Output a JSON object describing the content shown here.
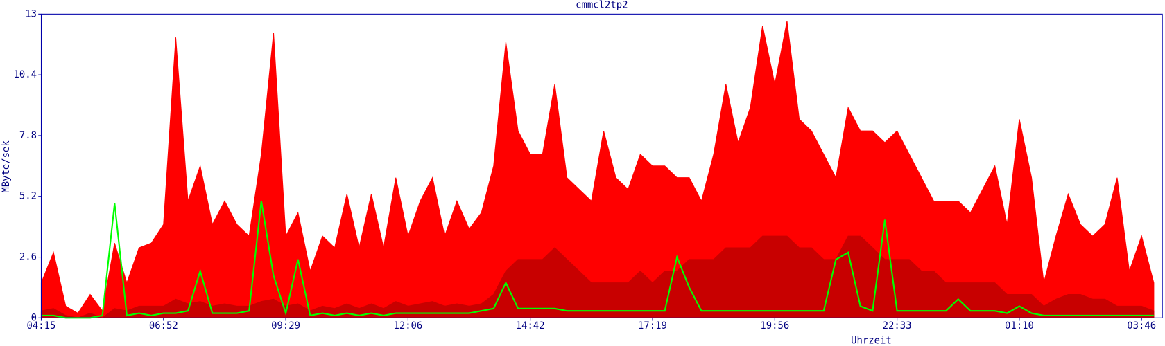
{
  "chart_data": {
    "type": "area",
    "title": "cmmcl2tp2",
    "y_label": "MByte/sek",
    "x_label": "Uhrzeit",
    "categories": [
      "04:15",
      null,
      null,
      null,
      null,
      null,
      null,
      null,
      null,
      null,
      "06:52",
      null,
      null,
      null,
      null,
      null,
      null,
      null,
      null,
      null,
      "09:29",
      null,
      null,
      null,
      null,
      null,
      null,
      null,
      null,
      null,
      "12:06",
      null,
      null,
      null,
      null,
      null,
      null,
      null,
      null,
      null,
      "14:42",
      null,
      null,
      null,
      null,
      null,
      null,
      null,
      null,
      null,
      "17:19",
      null,
      null,
      null,
      null,
      null,
      null,
      null,
      null,
      null,
      "19:56",
      null,
      null,
      null,
      null,
      null,
      null,
      null,
      null,
      null,
      "22:33",
      null,
      null,
      null,
      null,
      null,
      null,
      null,
      null,
      null,
      "01:10",
      null,
      null,
      null,
      null,
      null,
      null,
      null,
      null,
      null,
      "03:46",
      null
    ],
    "series": [
      {
        "color": "#ff0000",
        "style": "area",
        "values": [
          1.5,
          2.8,
          0.5,
          0.2,
          1,
          0.3,
          3.2,
          1.5,
          3,
          3.2,
          4,
          12,
          5,
          6.5,
          4,
          5,
          4,
          3.5,
          7,
          12.2,
          3.5,
          4.5,
          2,
          3.5,
          3,
          5.3,
          3,
          5.3,
          3,
          6,
          3.5,
          5,
          6,
          3.5,
          5,
          3.8,
          4.5,
          6.5,
          11.8,
          8,
          7,
          7,
          10,
          6,
          5.5,
          5,
          8,
          6,
          5.5,
          7,
          6.5,
          6.5,
          6,
          6,
          5,
          7,
          10,
          7.5,
          9,
          12.5,
          10,
          12.7,
          8.5,
          8,
          7,
          6,
          9,
          8,
          8,
          7.5,
          8,
          7,
          6,
          5,
          5,
          5,
          4.5,
          5.5,
          6.5,
          4,
          8.5,
          6,
          1.5,
          3.5,
          5.3,
          4,
          3.5,
          4,
          6,
          2,
          3.5,
          1.5
        ]
      },
      {
        "color": "#c80000",
        "style": "area",
        "values": [
          0.3,
          0.4,
          0.1,
          0,
          0.2,
          0,
          0.4,
          0.3,
          0.5,
          0.5,
          0.5,
          0.8,
          0.6,
          0.7,
          0.5,
          0.6,
          0.5,
          0.5,
          0.7,
          0.8,
          0.5,
          0.6,
          0.3,
          0.5,
          0.4,
          0.6,
          0.4,
          0.6,
          0.4,
          0.7,
          0.5,
          0.6,
          0.7,
          0.5,
          0.6,
          0.5,
          0.6,
          1,
          2,
          2.5,
          2.5,
          2.5,
          3,
          2.5,
          2,
          1.5,
          1.5,
          1.5,
          1.5,
          2,
          1.5,
          2,
          2,
          2.5,
          2.5,
          2.5,
          3,
          3,
          3,
          3.5,
          3.5,
          3.5,
          3,
          3,
          2.5,
          2.5,
          3.5,
          3.5,
          3,
          2.5,
          2.5,
          2.5,
          2,
          2,
          1.5,
          1.5,
          1.5,
          1.5,
          1.5,
          1,
          1,
          1,
          0.5,
          0.8,
          1,
          1,
          0.8,
          0.8,
          0.5,
          0.5,
          0.5,
          0.3
        ]
      },
      {
        "color": "#00ff00",
        "style": "line",
        "values": [
          0.1,
          0.1,
          0,
          0,
          0,
          0.1,
          4.9,
          0.1,
          0.2,
          0.1,
          0.2,
          0.2,
          0.3,
          2,
          0.2,
          0.2,
          0.2,
          0.3,
          5,
          1.8,
          0.2,
          2.5,
          0.1,
          0.2,
          0.1,
          0.2,
          0.1,
          0.2,
          0.1,
          0.2,
          0.2,
          0.2,
          0.2,
          0.2,
          0.2,
          0.2,
          0.3,
          0.4,
          1.5,
          0.4,
          0.4,
          0.4,
          0.4,
          0.3,
          0.3,
          0.3,
          0.3,
          0.3,
          0.3,
          0.3,
          0.3,
          0.3,
          2.6,
          1.3,
          0.3,
          0.3,
          0.3,
          0.3,
          0.3,
          0.3,
          0.3,
          0.3,
          0.3,
          0.3,
          0.3,
          2.5,
          2.8,
          0.5,
          0.3,
          4.2,
          0.3,
          0.3,
          0.3,
          0.3,
          0.3,
          0.8,
          0.3,
          0.3,
          0.3,
          0.2,
          0.5,
          0.2,
          0.1,
          0.1,
          0.1,
          0.1,
          0.1,
          0.1,
          0.1,
          0.1,
          0.1,
          0.1
        ]
      }
    ],
    "ylim": [
      0,
      13
    ],
    "yticks": [
      0,
      2.6,
      5.2,
      7.8,
      10.4,
      13
    ]
  }
}
